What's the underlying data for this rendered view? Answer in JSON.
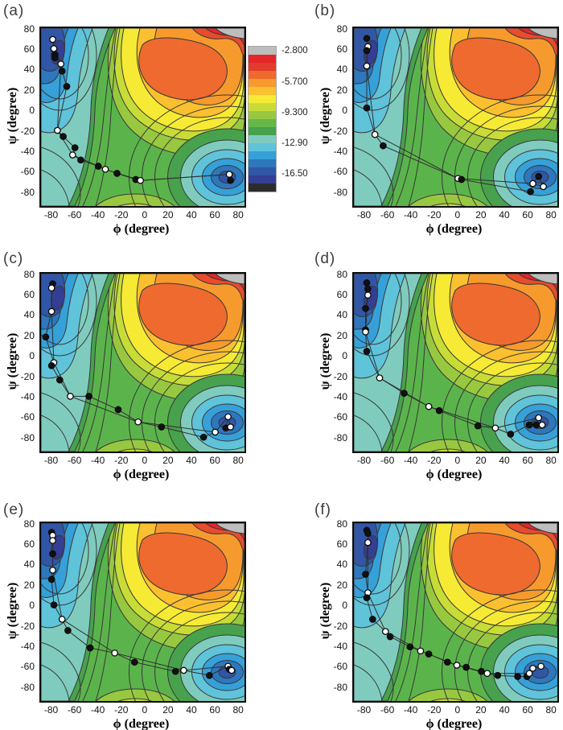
{
  "chart_data": {
    "type": "contour",
    "description": "Six free-energy contour maps (a)-(f) in backbone dihedral space, each overlaid with a minimum-energy path of open and filled circle markers running from the upper-left basin to the lower-right basin",
    "x_label": "ϕ (degree)",
    "y_label": "ψ (degree)",
    "x_ticks": [
      -80,
      -60,
      -40,
      -20,
      0,
      20,
      40,
      60,
      80
    ],
    "y_ticks": [
      80,
      60,
      40,
      20,
      0,
      -20,
      -40,
      -60,
      -80
    ],
    "x_range": [
      -90,
      84
    ],
    "y_range": [
      -92,
      82
    ],
    "grid": false,
    "legend_position": "right of panel (a)",
    "contour_levels": {
      "labels": [
        "-2.800",
        "-5.700",
        "-9.300",
        "-12.90",
        "-16.50"
      ],
      "label_offsets": [
        5,
        44,
        82,
        120,
        158
      ],
      "colors": [
        "#bdbdbd",
        "#e4262a",
        "#e33b2d",
        "#ef6a2e",
        "#f79a2d",
        "#fbc02f",
        "#f6ea35",
        "#c8dc38",
        "#98c840",
        "#63b848",
        "#47a14d",
        "#7fccbe",
        "#5fc3da",
        "#36a0d8",
        "#2d77bd",
        "#3156a6",
        "#333e94",
        "#2c2c2c"
      ]
    },
    "marker_legend": {
      "open": "path image (open circle)",
      "filled": "path image (filled circle)"
    },
    "panels": [
      {
        "id": "a",
        "label": "(a)",
        "points": [
          [
            -80,
            71,
            "o"
          ],
          [
            -79,
            62,
            "o"
          ],
          [
            -78,
            56,
            "f"
          ],
          [
            -78,
            53,
            "f"
          ],
          [
            -73,
            47,
            "o"
          ],
          [
            -72,
            40,
            "f"
          ],
          [
            -68,
            25,
            "f"
          ],
          [
            -76,
            -18,
            "o"
          ],
          [
            -71,
            -24,
            "f"
          ],
          [
            -61,
            -35,
            "f"
          ],
          [
            -63,
            -42,
            "o"
          ],
          [
            -56,
            -47,
            "f"
          ],
          [
            -41,
            -53,
            "f"
          ],
          [
            -35,
            -56,
            "o"
          ],
          [
            -25,
            -60,
            "f"
          ],
          [
            -9,
            -66,
            "f"
          ],
          [
            -5,
            -67,
            "o"
          ],
          [
            71,
            -61,
            "o"
          ],
          [
            72,
            -67,
            "f"
          ]
        ]
      },
      {
        "id": "b",
        "label": "(b)",
        "points": [
          [
            -79,
            72,
            "f"
          ],
          [
            -78,
            64,
            "o"
          ],
          [
            -79,
            60,
            "f"
          ],
          [
            -79,
            45,
            "o"
          ],
          [
            -79,
            4,
            "f"
          ],
          [
            -72,
            -22,
            "o"
          ],
          [
            -65,
            -33,
            "f"
          ],
          [
            -1,
            -65,
            "o"
          ],
          [
            2,
            -66,
            "f"
          ],
          [
            61,
            -78,
            "f"
          ],
          [
            63,
            -70,
            "o"
          ],
          [
            68,
            -63,
            "f"
          ],
          [
            72,
            -73,
            "o"
          ]
        ]
      },
      {
        "id": "c",
        "label": "(c)",
        "points": [
          [
            -80,
            72,
            "f"
          ],
          [
            -81,
            68,
            "o"
          ],
          [
            -81,
            45,
            "o"
          ],
          [
            -86,
            20,
            "f"
          ],
          [
            -79,
            -5,
            "o"
          ],
          [
            -81,
            -8,
            "f"
          ],
          [
            -74,
            -22,
            "f"
          ],
          [
            -65,
            -38,
            "o"
          ],
          [
            -49,
            -38,
            "f"
          ],
          [
            -24,
            -51,
            "f"
          ],
          [
            -7,
            -63,
            "o"
          ],
          [
            13,
            -68,
            "f"
          ],
          [
            49,
            -78,
            "f"
          ],
          [
            59,
            -73,
            "o"
          ],
          [
            70,
            -58,
            "o"
          ],
          [
            68,
            -69,
            "f"
          ],
          [
            72,
            -68,
            "o"
          ]
        ]
      },
      {
        "id": "d",
        "label": "(d)",
        "points": [
          [
            -79,
            73,
            "f"
          ],
          [
            -78,
            67,
            "f"
          ],
          [
            -78,
            61,
            "o"
          ],
          [
            -80,
            48,
            "f"
          ],
          [
            -80,
            27,
            "f"
          ],
          [
            -80,
            25,
            "o"
          ],
          [
            -79,
            6,
            "f"
          ],
          [
            -68,
            -20,
            "o"
          ],
          [
            -47,
            -35,
            "f"
          ],
          [
            -26,
            -48,
            "o"
          ],
          [
            -17,
            -52,
            "f"
          ],
          [
            16,
            -67,
            "f"
          ],
          [
            31,
            -69,
            "o"
          ],
          [
            44,
            -75,
            "f"
          ],
          [
            60,
            -66,
            "f"
          ],
          [
            68,
            -59,
            "o"
          ],
          [
            66,
            -66,
            "f"
          ],
          [
            71,
            -66,
            "o"
          ]
        ]
      },
      {
        "id": "e",
        "label": "(e)",
        "points": [
          [
            -81,
            73,
            "f"
          ],
          [
            -80,
            70,
            "o"
          ],
          [
            -80,
            65,
            "o"
          ],
          [
            -80,
            52,
            "f"
          ],
          [
            -80,
            36,
            "o"
          ],
          [
            -81,
            27,
            "f"
          ],
          [
            -79,
            2,
            "f"
          ],
          [
            -72,
            -12,
            "o"
          ],
          [
            -67,
            -23,
            "f"
          ],
          [
            -48,
            -40,
            "f"
          ],
          [
            -27,
            -45,
            "o"
          ],
          [
            -10,
            -54,
            "f"
          ],
          [
            25,
            -63,
            "f"
          ],
          [
            32,
            -62,
            "o"
          ],
          [
            54,
            -67,
            "f"
          ],
          [
            70,
            -58,
            "o"
          ],
          [
            71,
            -61,
            "f"
          ],
          [
            73,
            -62,
            "o"
          ]
        ]
      },
      {
        "id": "f",
        "label": "(f)",
        "points": [
          [
            -79,
            75,
            "f"
          ],
          [
            -78,
            72,
            "f"
          ],
          [
            -78,
            63,
            "o"
          ],
          [
            -80,
            32,
            "f"
          ],
          [
            -78,
            14,
            "o"
          ],
          [
            -79,
            9,
            "f"
          ],
          [
            -74,
            -12,
            "f"
          ],
          [
            -63,
            -24,
            "o"
          ],
          [
            -59,
            -29,
            "f"
          ],
          [
            -42,
            -39,
            "f"
          ],
          [
            -33,
            -43,
            "o"
          ],
          [
            -26,
            -46,
            "f"
          ],
          [
            -10,
            -54,
            "f"
          ],
          [
            -2,
            -57,
            "o"
          ],
          [
            6,
            -59,
            "f"
          ],
          [
            19,
            -63,
            "f"
          ],
          [
            24,
            -65,
            "o"
          ],
          [
            33,
            -67,
            "f"
          ],
          [
            50,
            -68,
            "f"
          ],
          [
            58,
            -68,
            "f"
          ],
          [
            60,
            -65,
            "o"
          ],
          [
            63,
            -60,
            "o"
          ],
          [
            70,
            -58,
            "o"
          ]
        ]
      }
    ]
  }
}
